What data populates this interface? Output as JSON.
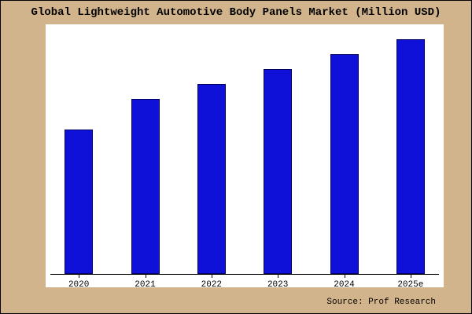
{
  "title": "Global Lightweight Automotive Body Panels Market (Million USD)",
  "source": "Source: Prof Research",
  "colors": {
    "background": "#d2b48c",
    "plot_background": "#ffffff",
    "bar_fill": "#0f10d8",
    "bar_border": "#000060",
    "axis": "#000000",
    "text": "#000000"
  },
  "chart_data": {
    "type": "bar",
    "categories": [
      "2020",
      "2021",
      "2022",
      "2023",
      "2024",
      "2025e"
    ],
    "values": [
      58,
      70,
      76,
      82,
      88,
      94
    ],
    "title": "Global Lightweight Automotive Body Panels Market (Million USD)",
    "xlabel": "",
    "ylabel": "",
    "ylim": [
      0,
      100
    ],
    "grid": false,
    "legend": "none",
    "value_units": "relative scale (no y-axis tick labels shown in chart)"
  }
}
